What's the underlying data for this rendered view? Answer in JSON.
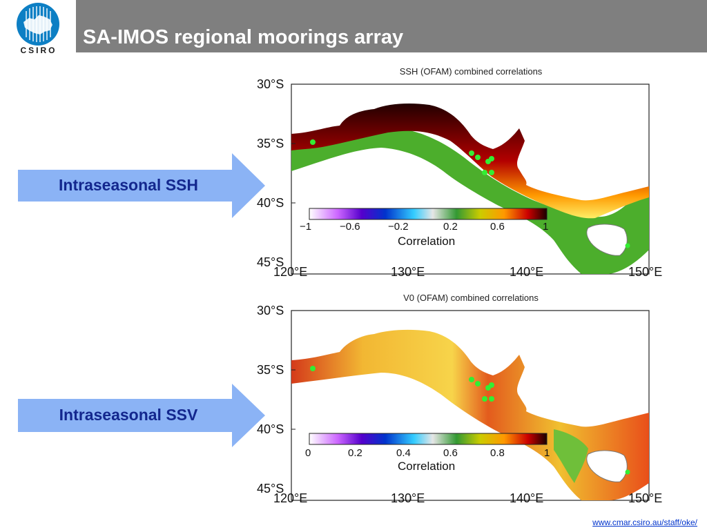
{
  "header": {
    "title": "SA-IMOS regional moorings array",
    "logo_text": "CSIRO",
    "bar_color": "#7f7f7f"
  },
  "arrows": [
    {
      "label": "Intraseasonal SSH",
      "color": "#8bb3f5"
    },
    {
      "label": "Intraseasonal SSV",
      "color": "#8bb3f5"
    }
  ],
  "panels": [
    {
      "title": "SSH (OFAM) combined correlations",
      "lat_ticks": [
        "30°S",
        "35°S",
        "40°S",
        "45°S"
      ],
      "lon_ticks": [
        "120°E",
        "130°E",
        "140°E",
        "150°E"
      ],
      "colorbar": {
        "ticks": [
          "−1",
          "−0.6",
          "−0.2",
          "0.2",
          "0.6",
          "1"
        ],
        "title": "Correlation"
      }
    },
    {
      "title": "V0 (OFAM) combined correlations",
      "lat_ticks": [
        "30°S",
        "35°S",
        "40°S",
        "45°S"
      ],
      "lon_ticks": [
        "120°E",
        "130°E",
        "140°E",
        "150°E"
      ],
      "colorbar": {
        "ticks": [
          "0",
          "0.2",
          "0.4",
          "0.6",
          "0.8",
          "1"
        ],
        "title": "Correlation"
      }
    }
  ],
  "footer": {
    "link": "www.cmar.csiro.au/staff/oke/"
  }
}
